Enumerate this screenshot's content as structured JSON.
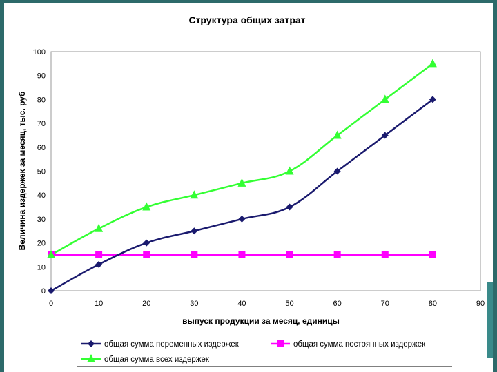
{
  "chart_data": {
    "type": "line",
    "title": "Структура общих затрат",
    "xlabel": "выпуск продукции за месяц, единицы",
    "ylabel": "Величина издержек за месяц, тыс. руб",
    "xlim": [
      0,
      90
    ],
    "ylim": [
      0,
      100
    ],
    "x_ticks": [
      0,
      10,
      20,
      30,
      40,
      50,
      60,
      70,
      80,
      90
    ],
    "y_ticks": [
      0,
      10,
      20,
      30,
      40,
      50,
      60,
      70,
      80,
      90,
      100
    ],
    "grid": false,
    "legend_position": "bottom",
    "x": [
      0,
      10,
      20,
      30,
      40,
      50,
      60,
      70,
      80
    ],
    "series": [
      {
        "name": "общая сумма переменных издержек",
        "values": [
          0,
          11,
          20,
          25,
          30,
          35,
          50,
          65,
          80
        ],
        "color": "#1a1a6e",
        "marker": "diamond"
      },
      {
        "name": "общая сумма постоянных издержек",
        "values": [
          15,
          15,
          15,
          15,
          15,
          15,
          15,
          15,
          15
        ],
        "color": "#ff00ff",
        "marker": "square"
      },
      {
        "name": "общая сумма всех издержек",
        "values": [
          15,
          26,
          35,
          40,
          45,
          50,
          65,
          80,
          95
        ],
        "color": "#33ff33",
        "marker": "triangle"
      }
    ]
  }
}
